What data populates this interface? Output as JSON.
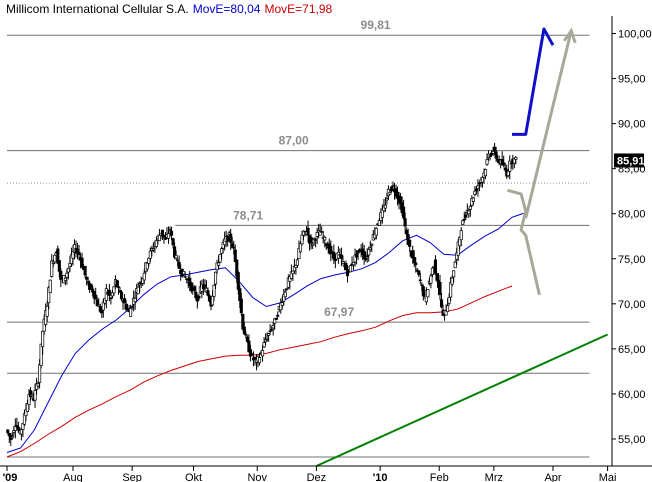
{
  "chart_data": {
    "type": "candlestick",
    "title": {
      "name": "Millicom International Cellular S.A.",
      "ma1_label": "MovE=80,04",
      "ma2_label": "MovE=71,98"
    },
    "colors": {
      "ma1": "#0000cc",
      "ma2": "#cc0000",
      "trendline": "#008000",
      "forecast_up": "#1010cc",
      "forecast_alt": "#a8a898",
      "level": "#707070"
    },
    "y_axis": {
      "range": [
        52,
        101.5
      ],
      "ticks": [
        {
          "value": 55,
          "label": "55,00"
        },
        {
          "value": 60,
          "label": "60,00"
        },
        {
          "value": 65,
          "label": "65,00"
        },
        {
          "value": 70,
          "label": "70,00"
        },
        {
          "value": 75,
          "label": "75,00"
        },
        {
          "value": 80,
          "label": "80,00"
        },
        {
          "value": 85,
          "label": "85,00"
        },
        {
          "value": 90,
          "label": "90,00"
        },
        {
          "value": 95,
          "label": "95,00"
        },
        {
          "value": 100,
          "label": "100,00"
        }
      ],
      "last_value_label": "85,91",
      "last_value": 85.91
    },
    "x_axis": {
      "range": [
        0,
        132
      ],
      "ticks": [
        {
          "week": 0,
          "label": "'09",
          "bold": true
        },
        {
          "week": 14.5,
          "label": "Aug",
          "bold": false
        },
        {
          "week": 27.5,
          "label": "Sep",
          "bold": false
        },
        {
          "week": 41,
          "label": "Okt",
          "bold": false
        },
        {
          "week": 55,
          "label": "Nov",
          "bold": false
        },
        {
          "week": 68,
          "label": "Dez",
          "bold": false
        },
        {
          "week": 82,
          "label": "'10",
          "bold": true
        },
        {
          "week": 95,
          "label": "Feb",
          "bold": false
        },
        {
          "week": 107,
          "label": "Mrz",
          "bold": false
        },
        {
          "week": 120,
          "label": "Apr",
          "bold": false
        },
        {
          "week": 132,
          "label": "Mai",
          "bold": false
        }
      ]
    },
    "levels": [
      {
        "value": 99.81,
        "label": "99,81",
        "x_from": 0,
        "x_to": 128,
        "label_week": 81
      },
      {
        "value": 87.0,
        "label": "87,00",
        "x_from": 0,
        "x_to": 128,
        "label_week": 63
      },
      {
        "value": 78.71,
        "label": "78,71",
        "x_from": 37,
        "x_to": 128,
        "label_week": 53
      },
      {
        "value": 67.97,
        "label": "67,97",
        "x_from": 0,
        "x_to": 128,
        "label_week": 73
      },
      {
        "value": 62.3,
        "label": "",
        "x_from": 0,
        "x_to": 128,
        "label_week": 0
      },
      {
        "value": 53.0,
        "label": "",
        "x_from": 0,
        "x_to": 128,
        "label_week": 0
      }
    ],
    "dotted_levels": [
      {
        "value": 83.4,
        "x_from": 0,
        "x_to": 128
      }
    ],
    "trendline": [
      {
        "x": 68,
        "y": 52.0
      },
      {
        "x": 132,
        "y": 66.6
      }
    ],
    "forecast_up": [
      {
        "x": 111,
        "y": 88.8
      },
      {
        "x": 114,
        "y": 88.8
      },
      {
        "x": 118,
        "y": 100.5
      },
      {
        "x": 120,
        "y": 98.7
      }
    ],
    "forecast_alt_down": [
      {
        "x": 110,
        "y": 82.6
      },
      {
        "x": 113,
        "y": 82.2
      },
      {
        "x": 114,
        "y": 80.3
      },
      {
        "x": 113,
        "y": 78.2
      },
      {
        "x": 114,
        "y": 77.6
      },
      {
        "x": 117,
        "y": 71.0
      }
    ],
    "forecast_alt_up": [
      {
        "x": 114,
        "y": 79.5
      },
      {
        "x": 124,
        "y": 100.3
      }
    ],
    "ma1": [
      [
        0,
        53.5
      ],
      [
        3,
        54.0
      ],
      [
        6,
        56.0
      ],
      [
        9,
        59.0
      ],
      [
        12,
        62.0
      ],
      [
        15,
        64.5
      ],
      [
        18,
        66.0
      ],
      [
        21,
        67.2
      ],
      [
        24,
        68.2
      ],
      [
        27,
        69.5
      ],
      [
        30,
        71.0
      ],
      [
        33,
        72.2
      ],
      [
        36,
        73.0
      ],
      [
        39,
        73.2
      ],
      [
        42,
        73.5
      ],
      [
        45,
        73.8
      ],
      [
        48,
        74.0
      ],
      [
        51,
        72.5
      ],
      [
        54,
        70.7
      ],
      [
        57,
        69.7
      ],
      [
        60,
        70.1
      ],
      [
        63,
        71.0
      ],
      [
        66,
        72.0
      ],
      [
        69,
        72.8
      ],
      [
        72,
        73.2
      ],
      [
        75,
        73.5
      ],
      [
        78,
        73.9
      ],
      [
        81,
        74.6
      ],
      [
        84,
        75.7
      ],
      [
        87,
        77.0
      ],
      [
        90,
        77.6
      ],
      [
        93,
        76.8
      ],
      [
        96,
        75.5
      ],
      [
        99,
        75.4
      ],
      [
        102,
        76.5
      ],
      [
        105,
        77.5
      ],
      [
        108,
        78.3
      ],
      [
        111,
        79.6
      ],
      [
        113.5,
        80.04
      ]
    ],
    "ma2": [
      [
        0,
        53.0
      ],
      [
        3,
        53.6
      ],
      [
        6,
        54.5
      ],
      [
        9,
        55.5
      ],
      [
        12,
        56.4
      ],
      [
        15,
        57.4
      ],
      [
        18,
        58.2
      ],
      [
        21,
        58.9
      ],
      [
        24,
        59.7
      ],
      [
        27,
        60.4
      ],
      [
        30,
        61.3
      ],
      [
        33,
        62.0
      ],
      [
        36,
        62.6
      ],
      [
        39,
        63.1
      ],
      [
        42,
        63.6
      ],
      [
        45,
        63.9
      ],
      [
        48,
        64.2
      ],
      [
        51,
        64.3
      ],
      [
        54,
        64.3
      ],
      [
        57,
        64.5
      ],
      [
        60,
        64.9
      ],
      [
        63,
        65.2
      ],
      [
        66,
        65.5
      ],
      [
        69,
        65.8
      ],
      [
        72,
        66.3
      ],
      [
        75,
        66.7
      ],
      [
        78,
        67.0
      ],
      [
        81,
        67.4
      ],
      [
        84,
        68.1
      ],
      [
        87,
        68.7
      ],
      [
        90,
        69.0
      ],
      [
        93,
        69.0
      ],
      [
        96,
        69.1
      ],
      [
        99,
        69.4
      ],
      [
        102,
        70.1
      ],
      [
        105,
        70.8
      ],
      [
        108,
        71.4
      ],
      [
        111,
        71.98
      ]
    ],
    "price_path": [
      [
        0,
        56.0
      ],
      [
        1,
        55.0
      ],
      [
        2,
        56.8
      ],
      [
        3,
        55.5
      ],
      [
        4,
        57.5
      ],
      [
        5,
        60.0
      ],
      [
        6,
        59.5
      ],
      [
        7,
        61.5
      ],
      [
        8,
        67.0
      ],
      [
        9,
        70.0
      ],
      [
        10,
        74.5
      ],
      [
        11,
        76.0
      ],
      [
        12,
        72.5
      ],
      [
        13,
        73.0
      ],
      [
        14,
        74.5
      ],
      [
        15,
        76.2
      ],
      [
        16,
        75.5
      ],
      [
        17,
        73.8
      ],
      [
        18,
        72.0
      ],
      [
        19,
        71.5
      ],
      [
        20,
        70.0
      ],
      [
        21,
        69.0
      ],
      [
        22,
        71.5
      ],
      [
        23,
        70.5
      ],
      [
        24,
        72.5
      ],
      [
        25,
        71.0
      ],
      [
        26,
        70.0
      ],
      [
        27,
        69.0
      ],
      [
        28,
        70.5
      ],
      [
        29,
        72.0
      ],
      [
        30,
        73.0
      ],
      [
        31,
        74.8
      ],
      [
        32,
        76.0
      ],
      [
        33,
        77.0
      ],
      [
        34,
        78.0
      ],
      [
        35,
        77.0
      ],
      [
        36,
        78.3
      ],
      [
        37,
        75.5
      ],
      [
        38,
        74.0
      ],
      [
        39,
        73.2
      ],
      [
        40,
        72.5
      ],
      [
        41,
        71.5
      ],
      [
        42,
        70.5
      ],
      [
        43,
        72.0
      ],
      [
        44,
        71.5
      ],
      [
        45,
        70.0
      ],
      [
        46,
        73.5
      ],
      [
        47,
        75.5
      ],
      [
        48,
        77.0
      ],
      [
        49,
        77.5
      ],
      [
        50,
        76.0
      ],
      [
        51,
        72.0
      ],
      [
        52,
        67.5
      ],
      [
        53,
        65.5
      ],
      [
        54,
        64.0
      ],
      [
        55,
        63.5
      ],
      [
        56,
        64.5
      ],
      [
        57,
        66.0
      ],
      [
        58,
        67.0
      ],
      [
        59,
        68.0
      ],
      [
        60,
        69.5
      ],
      [
        61,
        71.0
      ],
      [
        62,
        72.5
      ],
      [
        63,
        73.5
      ],
      [
        64,
        75.0
      ],
      [
        65,
        77.5
      ],
      [
        66,
        78.2
      ],
      [
        67,
        76.5
      ],
      [
        68,
        77.5
      ],
      [
        69,
        78.0
      ],
      [
        70,
        77.0
      ],
      [
        71,
        76.0
      ],
      [
        72,
        75.0
      ],
      [
        73,
        75.5
      ],
      [
        74,
        74.5
      ],
      [
        75,
        73.5
      ],
      [
        76,
        74.5
      ],
      [
        77,
        75.5
      ],
      [
        78,
        76.0
      ],
      [
        79,
        75.0
      ],
      [
        80,
        76.5
      ],
      [
        81,
        78.0
      ],
      [
        82,
        79.5
      ],
      [
        83,
        80.5
      ],
      [
        84,
        82.5
      ],
      [
        85,
        83.0
      ],
      [
        86,
        82.0
      ],
      [
        87,
        80.5
      ],
      [
        88,
        77.5
      ],
      [
        89,
        75.5
      ],
      [
        90,
        74.0
      ],
      [
        91,
        72.5
      ],
      [
        92,
        70.5
      ],
      [
        93,
        72.5
      ],
      [
        94,
        74.5
      ],
      [
        95,
        72.0
      ],
      [
        96,
        68.5
      ],
      [
        97,
        70.0
      ],
      [
        98,
        73.0
      ],
      [
        99,
        75.5
      ],
      [
        100,
        78.5
      ],
      [
        101,
        80.0
      ],
      [
        102,
        81.0
      ],
      [
        103,
        82.5
      ],
      [
        104,
        83.5
      ],
      [
        105,
        84.5
      ],
      [
        106,
        86.5
      ],
      [
        107,
        87.0
      ],
      [
        108,
        86.0
      ],
      [
        109,
        85.5
      ],
      [
        110,
        84.5
      ],
      [
        111,
        86.0
      ],
      [
        112,
        85.91
      ]
    ]
  }
}
